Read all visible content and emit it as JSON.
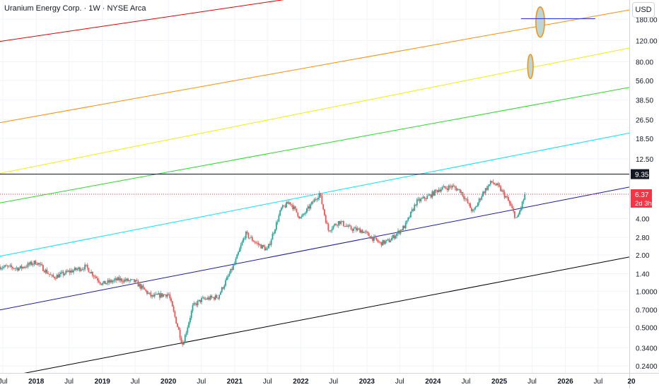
{
  "header": {
    "title": "Uranium Energy Corp. · 1W · NYSE Arca",
    "currency": "USD"
  },
  "colors": {
    "candle_up": "#26a69a",
    "candle_down": "#ef5350",
    "grid": "#f0f3fa",
    "axis_text": "#131722",
    "last_price_bg": "#f23645",
    "hline_label_bg": "#131722"
  },
  "chart_data": {
    "type": "candlestick",
    "scale": "log",
    "ylim": [
      0.21,
      260
    ],
    "xlim": [
      "2017-06-15",
      "2026-12-20"
    ],
    "y_ticks": [
      "0.2400",
      "0.3400",
      "0.5000",
      "0.7000",
      "1.0000",
      "1.40",
      "2.00",
      "2.80",
      "4.00",
      "12.50",
      "18.50",
      "26.50",
      "38.50",
      "56.00",
      "80.00",
      "120.00",
      "180.00"
    ],
    "y_tick_values": [
      0.24,
      0.34,
      0.5,
      0.7,
      1.0,
      1.4,
      2.0,
      2.8,
      4.0,
      12.5,
      18.5,
      26.5,
      38.5,
      56,
      80,
      120,
      180
    ],
    "x_ticks": [
      {
        "label": "Jul",
        "date": "2017-07-01",
        "bold": false
      },
      {
        "label": "2018",
        "date": "2018-01-01",
        "bold": true
      },
      {
        "label": "Jul",
        "date": "2018-07-01",
        "bold": false
      },
      {
        "label": "2019",
        "date": "2019-01-01",
        "bold": true
      },
      {
        "label": "Jul",
        "date": "2019-07-01",
        "bold": false
      },
      {
        "label": "2020",
        "date": "2020-01-01",
        "bold": true
      },
      {
        "label": "Jul",
        "date": "2020-07-01",
        "bold": false
      },
      {
        "label": "2021",
        "date": "2021-01-01",
        "bold": true
      },
      {
        "label": "Jul",
        "date": "2021-07-01",
        "bold": false
      },
      {
        "label": "2022",
        "date": "2022-01-01",
        "bold": true
      },
      {
        "label": "Jul",
        "date": "2022-07-01",
        "bold": false
      },
      {
        "label": "2023",
        "date": "2023-01-01",
        "bold": true
      },
      {
        "label": "Jul",
        "date": "2023-07-01",
        "bold": false
      },
      {
        "label": "2024",
        "date": "2024-01-01",
        "bold": true
      },
      {
        "label": "Jul",
        "date": "2024-07-01",
        "bold": false
      },
      {
        "label": "2025",
        "date": "2025-01-01",
        "bold": true
      },
      {
        "label": "Jul",
        "date": "2025-07-01",
        "bold": false
      },
      {
        "label": "2026",
        "date": "2026-01-01",
        "bold": true
      },
      {
        "label": "Jul",
        "date": "2026-07-01",
        "bold": false
      },
      {
        "label": "20",
        "date": "2027-01-01",
        "bold": true
      }
    ],
    "price_anchors": [
      [
        "2017-06-15",
        1.6
      ],
      [
        "2017-10-01",
        1.55
      ],
      [
        "2018-01-01",
        1.75
      ],
      [
        "2018-04-01",
        1.3
      ],
      [
        "2018-07-01",
        1.45
      ],
      [
        "2018-10-01",
        1.6
      ],
      [
        "2019-01-01",
        1.15
      ],
      [
        "2019-04-01",
        1.25
      ],
      [
        "2019-07-01",
        1.2
      ],
      [
        "2019-10-01",
        0.9
      ],
      [
        "2020-01-01",
        0.95
      ],
      [
        "2020-03-20",
        0.36
      ],
      [
        "2020-05-15",
        0.75
      ],
      [
        "2020-07-01",
        0.85
      ],
      [
        "2020-10-01",
        0.9
      ],
      [
        "2021-01-01",
        1.7
      ],
      [
        "2021-03-01",
        3.0
      ],
      [
        "2021-05-01",
        2.5
      ],
      [
        "2021-07-01",
        2.2
      ],
      [
        "2021-09-15",
        4.8
      ],
      [
        "2021-11-01",
        5.5
      ],
      [
        "2022-01-01",
        4.0
      ],
      [
        "2022-04-15",
        6.5
      ],
      [
        "2022-06-01",
        3.2
      ],
      [
        "2022-08-01",
        3.8
      ],
      [
        "2022-10-01",
        3.3
      ],
      [
        "2022-12-01",
        3.2
      ],
      [
        "2023-03-15",
        2.5
      ],
      [
        "2023-05-01",
        2.6
      ],
      [
        "2023-08-01",
        3.5
      ],
      [
        "2023-10-01",
        5.5
      ],
      [
        "2023-12-15",
        6.2
      ],
      [
        "2024-02-01",
        7.0
      ],
      [
        "2024-04-15",
        7.4
      ],
      [
        "2024-06-01",
        6.8
      ],
      [
        "2024-08-10",
        4.5
      ],
      [
        "2024-10-01",
        6.5
      ],
      [
        "2024-11-20",
        8.1
      ],
      [
        "2025-01-01",
        7.2
      ],
      [
        "2025-02-15",
        5.8
      ],
      [
        "2025-04-08",
        3.9
      ],
      [
        "2025-05-01",
        5.0
      ],
      [
        "2025-05-25",
        6.37
      ]
    ],
    "candle_start": "2017-06-15",
    "candle_end": "2025-05-25",
    "last_price": 6.37,
    "last_price_label": "6.37",
    "countdown": "2d 3h",
    "horizontal_level": {
      "value": 9.35,
      "label": "9.35",
      "color": "#131722"
    },
    "channel_lines": [
      {
        "color": "#000000",
        "p1": [
          "2017-12-10",
          0.215
        ],
        "p2": [
          "2026-12-20",
          1.92
        ]
      },
      {
        "color": "#1a1a9e",
        "p1": [
          "2017-06-15",
          0.7
        ],
        "p2": [
          "2026-12-20",
          7.3
        ]
      },
      {
        "color": "#00e5ff",
        "p1": [
          "2017-06-15",
          1.95
        ],
        "p2": [
          "2026-12-20",
          20.5
        ]
      },
      {
        "color": "#22dd22",
        "p1": [
          "2017-06-15",
          5.4
        ],
        "p2": [
          "2026-12-20",
          49
        ]
      },
      {
        "color": "#f0f000",
        "p1": [
          "2017-06-15",
          9.5
        ],
        "p2": [
          "2026-12-20",
          104
        ]
      },
      {
        "color": "#ff8c00",
        "p1": [
          "2017-06-15",
          25
        ],
        "p2": [
          "2026-12-20",
          215
        ]
      },
      {
        "color": "#e00000",
        "p1": [
          "2017-06-15",
          118
        ],
        "p2": [
          "2021-12-01",
          270
        ]
      }
    ],
    "short_segment": {
      "color": "#3b3bdd",
      "p1": [
        "2025-05-01",
        182
      ],
      "p2": [
        "2026-06-15",
        182
      ]
    },
    "ellipses": [
      {
        "center": [
          "2025-08-15",
          172
        ],
        "r_days": 24,
        "r_val_low": 128,
        "r_val_high": 228,
        "fill": "#b9d7d7",
        "stroke": "#ff8c00"
      },
      {
        "center": [
          "2025-06-22",
          74
        ],
        "r_days": 15,
        "r_val_low": 58,
        "r_val_high": 92,
        "fill": "#b9d7d7",
        "stroke": "#ff8c00"
      }
    ]
  }
}
